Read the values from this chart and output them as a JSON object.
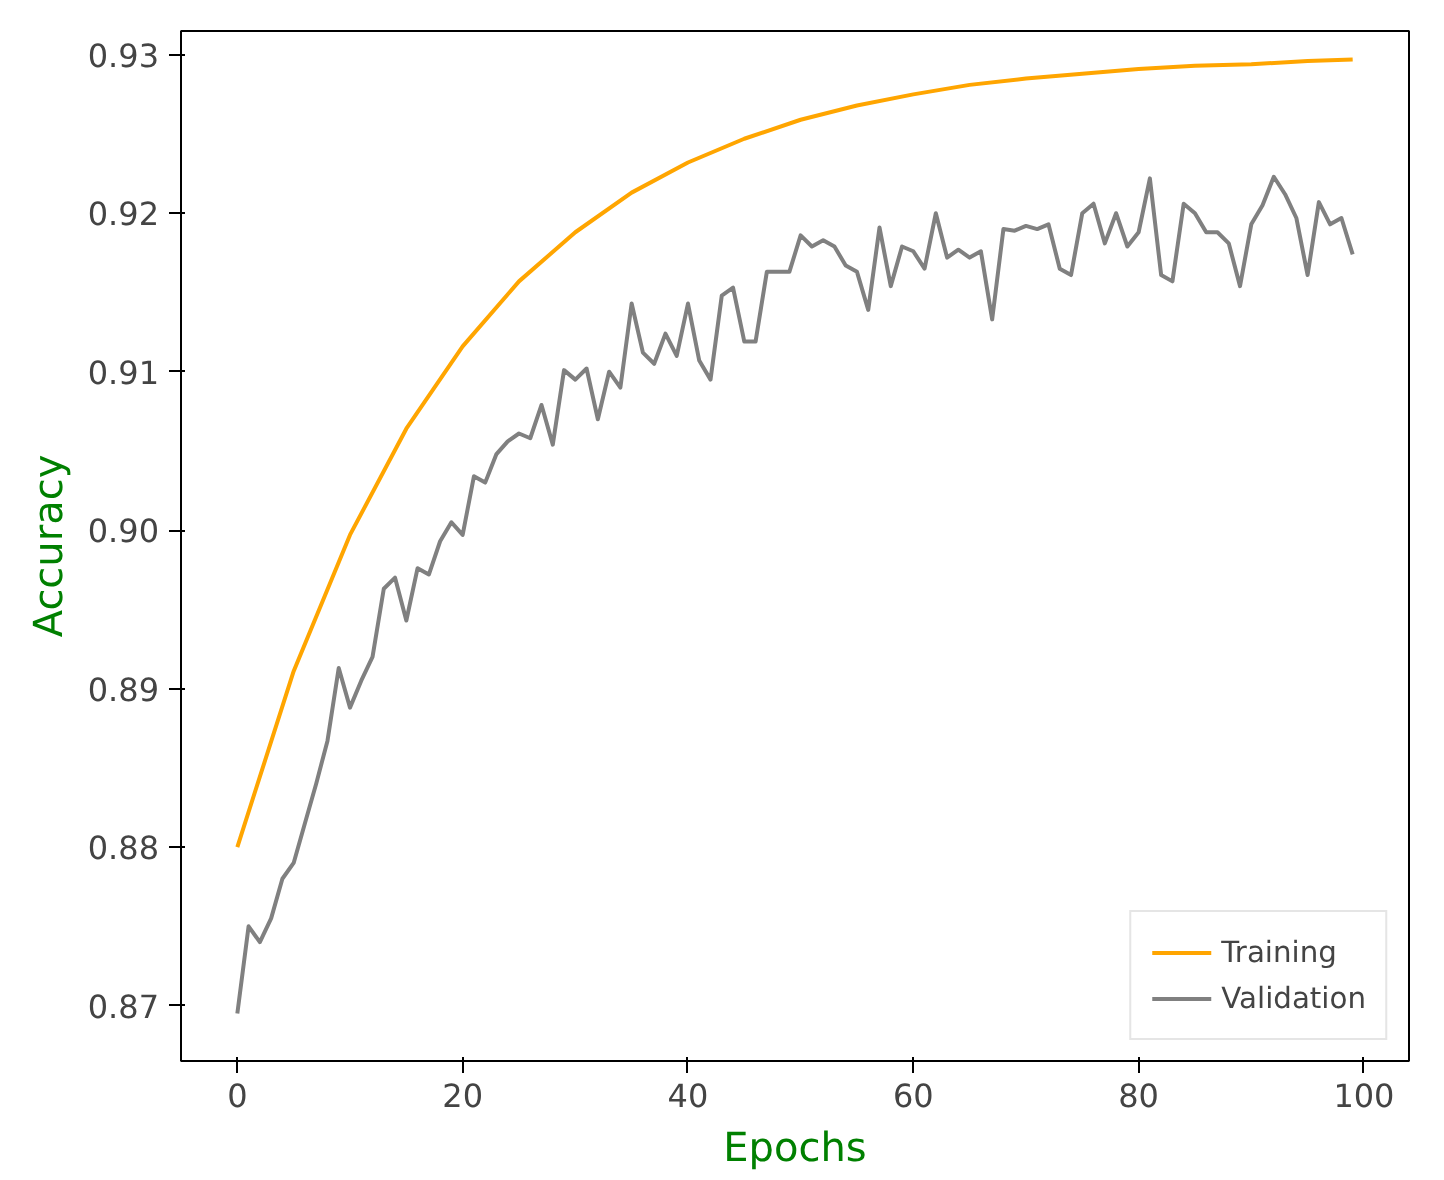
{
  "chart_data": {
    "type": "line",
    "xlabel": "Epochs",
    "ylabel": "Accuracy",
    "xlim": [
      -5,
      104
    ],
    "ylim": [
      0.8665,
      0.9315
    ],
    "xticks": [
      0,
      20,
      40,
      60,
      80,
      100
    ],
    "yticks": [
      {
        "value": 0.87,
        "label": "0.87"
      },
      {
        "value": 0.88,
        "label": "0.88"
      },
      {
        "value": 0.89,
        "label": "0.89"
      },
      {
        "value": 0.9,
        "label": "0.90"
      },
      {
        "value": 0.91,
        "label": "0.91"
      },
      {
        "value": 0.92,
        "label": "0.92"
      },
      {
        "value": 0.93,
        "label": "0.93"
      }
    ],
    "grid": false,
    "legend": "bottom right",
    "marker": "none",
    "line_style": "solid",
    "series": [
      {
        "name": "Training",
        "color": "#ffa500",
        "x": [
          0,
          5,
          10,
          15,
          20,
          25,
          30,
          35,
          40,
          45,
          50,
          55,
          60,
          65,
          70,
          75,
          80,
          85,
          90,
          95,
          99
        ],
        "values": [
          0.88,
          0.8911,
          0.8997,
          0.9064,
          0.9116,
          0.9157,
          0.9188,
          0.9213,
          0.9232,
          0.9247,
          0.9259,
          0.9268,
          0.9275,
          0.9281,
          0.9285,
          0.9288,
          0.9291,
          0.9293,
          0.9294,
          0.9296,
          0.9297
        ]
      },
      {
        "name": "Validation",
        "color": "#808080",
        "x": [
          0,
          1,
          2,
          3,
          4,
          5,
          6,
          7,
          8,
          9,
          10,
          11,
          12,
          13,
          14,
          15,
          16,
          17,
          18,
          19,
          20,
          21,
          22,
          23,
          24,
          25,
          26,
          27,
          28,
          29,
          30,
          31,
          32,
          33,
          34,
          35,
          36,
          37,
          38,
          39,
          40,
          41,
          42,
          43,
          44,
          45,
          46,
          47,
          48,
          49,
          50,
          51,
          52,
          53,
          54,
          55,
          56,
          57,
          58,
          59,
          60,
          61,
          62,
          63,
          64,
          65,
          66,
          67,
          68,
          69,
          70,
          71,
          72,
          73,
          74,
          75,
          76,
          77,
          78,
          79,
          80,
          81,
          82,
          83,
          84,
          85,
          86,
          87,
          88,
          89,
          90,
          91,
          92,
          93,
          94,
          95,
          96,
          97,
          98,
          99
        ],
        "values": [
          0.8695,
          0.875,
          0.874,
          0.8755,
          0.878,
          0.879,
          0.8815,
          0.884,
          0.8867,
          0.8913,
          0.8888,
          0.8905,
          0.892,
          0.8963,
          0.897,
          0.8943,
          0.8976,
          0.8972,
          0.8993,
          0.9005,
          0.8997,
          0.9034,
          0.903,
          0.9048,
          0.9056,
          0.9061,
          0.9058,
          0.9079,
          0.9054,
          0.9101,
          0.9095,
          0.9102,
          0.907,
          0.91,
          0.909,
          0.9143,
          0.9112,
          0.9105,
          0.9124,
          0.911,
          0.9143,
          0.9107,
          0.9095,
          0.9148,
          0.9153,
          0.9119,
          0.9119,
          0.9163,
          0.9163,
          0.9163,
          0.9186,
          0.9179,
          0.9183,
          0.9179,
          0.9167,
          0.9163,
          0.9139,
          0.9191,
          0.9154,
          0.9179,
          0.9176,
          0.9165,
          0.92,
          0.9172,
          0.9177,
          0.9172,
          0.9176,
          0.9133,
          0.919,
          0.9189,
          0.9192,
          0.919,
          0.9193,
          0.9165,
          0.9161,
          0.92,
          0.9206,
          0.9181,
          0.92,
          0.9179,
          0.9188,
          0.9222,
          0.9161,
          0.9157,
          0.9206,
          0.92,
          0.9188,
          0.9188,
          0.9181,
          0.9154,
          0.9193,
          0.9205,
          0.9223,
          0.9212,
          0.9197,
          0.9161,
          0.9207,
          0.9193,
          0.9197,
          0.9174
        ]
      }
    ]
  }
}
